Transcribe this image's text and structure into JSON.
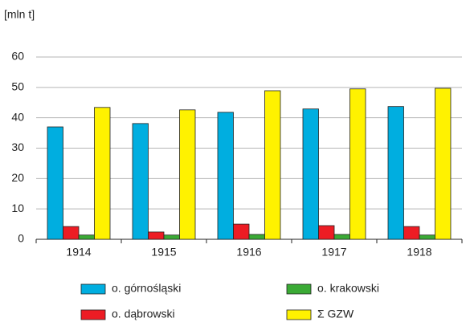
{
  "chart_data": {
    "type": "bar",
    "y_label": "[mln t]",
    "categories": [
      "1914",
      "1915",
      "1916",
      "1917",
      "1918"
    ],
    "series": [
      {
        "name": "o. górnośląski",
        "color": "#00aee0",
        "values": [
          37.0,
          38.1,
          41.8,
          42.9,
          43.7
        ]
      },
      {
        "name": "o. dąbrowski",
        "color": "#ed1c24",
        "values": [
          4.2,
          2.4,
          5.0,
          4.5,
          4.2
        ]
      },
      {
        "name": "o. krakowski",
        "color": "#3aaa35",
        "values": [
          1.4,
          1.4,
          1.6,
          1.6,
          1.4
        ]
      },
      {
        "name": "Σ GZW",
        "color": "#fff200",
        "values": [
          43.4,
          42.6,
          48.9,
          49.5,
          49.7
        ]
      }
    ],
    "ylim": [
      0,
      60
    ],
    "yticks": [
      0,
      10,
      20,
      30,
      40,
      50,
      60
    ],
    "grid": true
  }
}
